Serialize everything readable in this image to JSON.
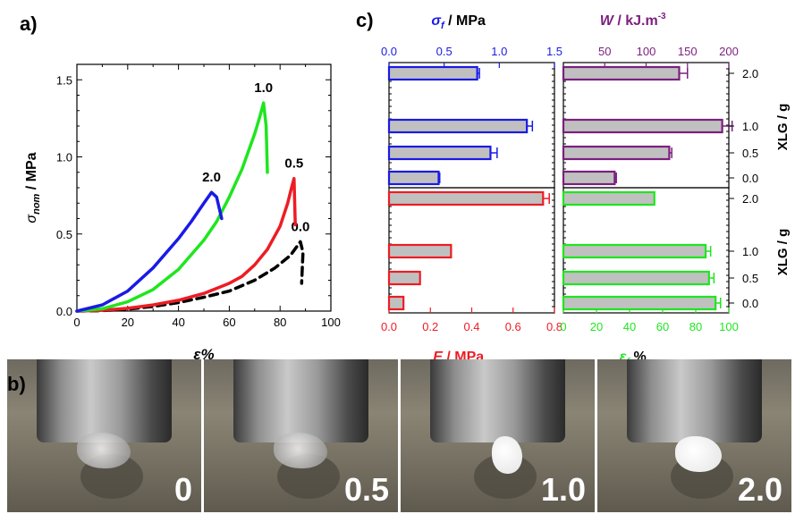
{
  "panel_labels": {
    "a": "a)",
    "b": "b)",
    "c": "c)"
  },
  "chart_data": [
    {
      "type": "line",
      "panel": "a",
      "xlabel": "ε%",
      "ylabel_base": "σ",
      "ylabel_sub": "nom",
      "ylabel_unit": " / MPa",
      "xlim": [
        0,
        100
      ],
      "ylim": [
        0,
        1.6
      ],
      "xticks": [
        0,
        20,
        40,
        60,
        80,
        100
      ],
      "yticks": [
        0.0,
        0.5,
        1.0,
        1.5
      ],
      "ytick_labels": [
        "0.0",
        "0.5",
        "1.0",
        "1.5"
      ],
      "series": [
        {
          "name": "0.0",
          "color": "#000000",
          "dashed": true,
          "x": [
            0,
            10,
            20,
            30,
            40,
            50,
            60,
            70,
            78,
            84,
            88,
            89,
            88.5
          ],
          "y": [
            0,
            0.003,
            0.012,
            0.03,
            0.055,
            0.09,
            0.13,
            0.2,
            0.28,
            0.36,
            0.45,
            0.38,
            0.18
          ]
        },
        {
          "name": "0.5",
          "color": "#ee1c24",
          "dashed": false,
          "x": [
            0,
            10,
            20,
            30,
            40,
            50,
            60,
            65,
            70,
            75,
            80,
            83,
            84.5,
            85.5,
            86
          ],
          "y": [
            0,
            0.005,
            0.018,
            0.04,
            0.07,
            0.115,
            0.18,
            0.225,
            0.3,
            0.4,
            0.55,
            0.7,
            0.8,
            0.86,
            0.56
          ]
        },
        {
          "name": "1.0",
          "color": "#1ee61e",
          "dashed": false,
          "x": [
            0,
            10,
            20,
            30,
            40,
            50,
            55,
            60,
            65,
            70,
            72,
            73.5,
            74.5,
            75
          ],
          "y": [
            0,
            0.015,
            0.06,
            0.14,
            0.27,
            0.46,
            0.58,
            0.74,
            0.92,
            1.15,
            1.26,
            1.35,
            1.2,
            0.9
          ]
        },
        {
          "name": "2.0",
          "color": "#1a1ae6",
          "dashed": false,
          "x": [
            0,
            10,
            20,
            30,
            40,
            45,
            50,
            53,
            55,
            57
          ],
          "y": [
            0,
            0.04,
            0.13,
            0.28,
            0.47,
            0.58,
            0.7,
            0.77,
            0.74,
            0.6
          ]
        }
      ]
    },
    {
      "type": "bar",
      "panel": "c",
      "ylabel": "XLG / g",
      "categories": [
        "2.0",
        "1.0",
        "0.5",
        "0.0"
      ],
      "subplots": [
        {
          "metric": "σf",
          "label_base": "σ",
          "label_sub": "f",
          "label_unit": " / MPa",
          "color": "#1a1ae6",
          "xlim": [
            0,
            1.5
          ],
          "ticks": [
            0.0,
            0.5,
            1.0,
            1.5
          ],
          "tick_labels": [
            "0.0",
            "0.5",
            "1.0",
            "1.5"
          ],
          "values": [
            0.8,
            1.25,
            0.92,
            0.45
          ],
          "errors": [
            0.02,
            0.05,
            0.06,
            0.01
          ]
        },
        {
          "metric": "W",
          "label_base": "W",
          "label_unit": " / kJ.m",
          "label_sup": "-3",
          "color": "#7b1f7f",
          "xlim": [
            0,
            200
          ],
          "ticks": [
            50,
            100,
            150,
            200
          ],
          "tick_labels": [
            "50",
            "100",
            "150",
            "200"
          ],
          "values": [
            140,
            192,
            128,
            62
          ],
          "errors": [
            10,
            12,
            3,
            2
          ]
        },
        {
          "metric": "E",
          "label_base": "E",
          "label_unit": " / MPa",
          "color": "#ee1c24",
          "xlim": [
            0,
            0.8
          ],
          "ticks": [
            0.0,
            0.2,
            0.4,
            0.6,
            0.8
          ],
          "tick_labels": [
            "0.0",
            "0.2",
            "0.4",
            "0.6",
            "0.8"
          ],
          "values": [
            0.745,
            0.3,
            0.15,
            0.07
          ],
          "errors": [
            0.03,
            0.0,
            0.0,
            0.0
          ]
        },
        {
          "metric": "εf",
          "label_base": "ε",
          "label_sub": "f",
          "label_unit": " %",
          "color": "#1ee61e",
          "xlim": [
            0,
            100
          ],
          "ticks": [
            0,
            20,
            40,
            60,
            80,
            100
          ],
          "tick_labels": [
            "0",
            "20",
            "40",
            "60",
            "80",
            "100"
          ],
          "values": [
            55,
            86,
            88,
            92
          ],
          "errors": [
            0,
            3,
            3,
            3
          ]
        }
      ]
    }
  ],
  "photos": [
    {
      "label": "0",
      "sample": "transparent"
    },
    {
      "label": "0.5",
      "sample": "transparent"
    },
    {
      "label": "1.0",
      "sample": "white"
    },
    {
      "label": "2.0",
      "sample": "white"
    }
  ]
}
